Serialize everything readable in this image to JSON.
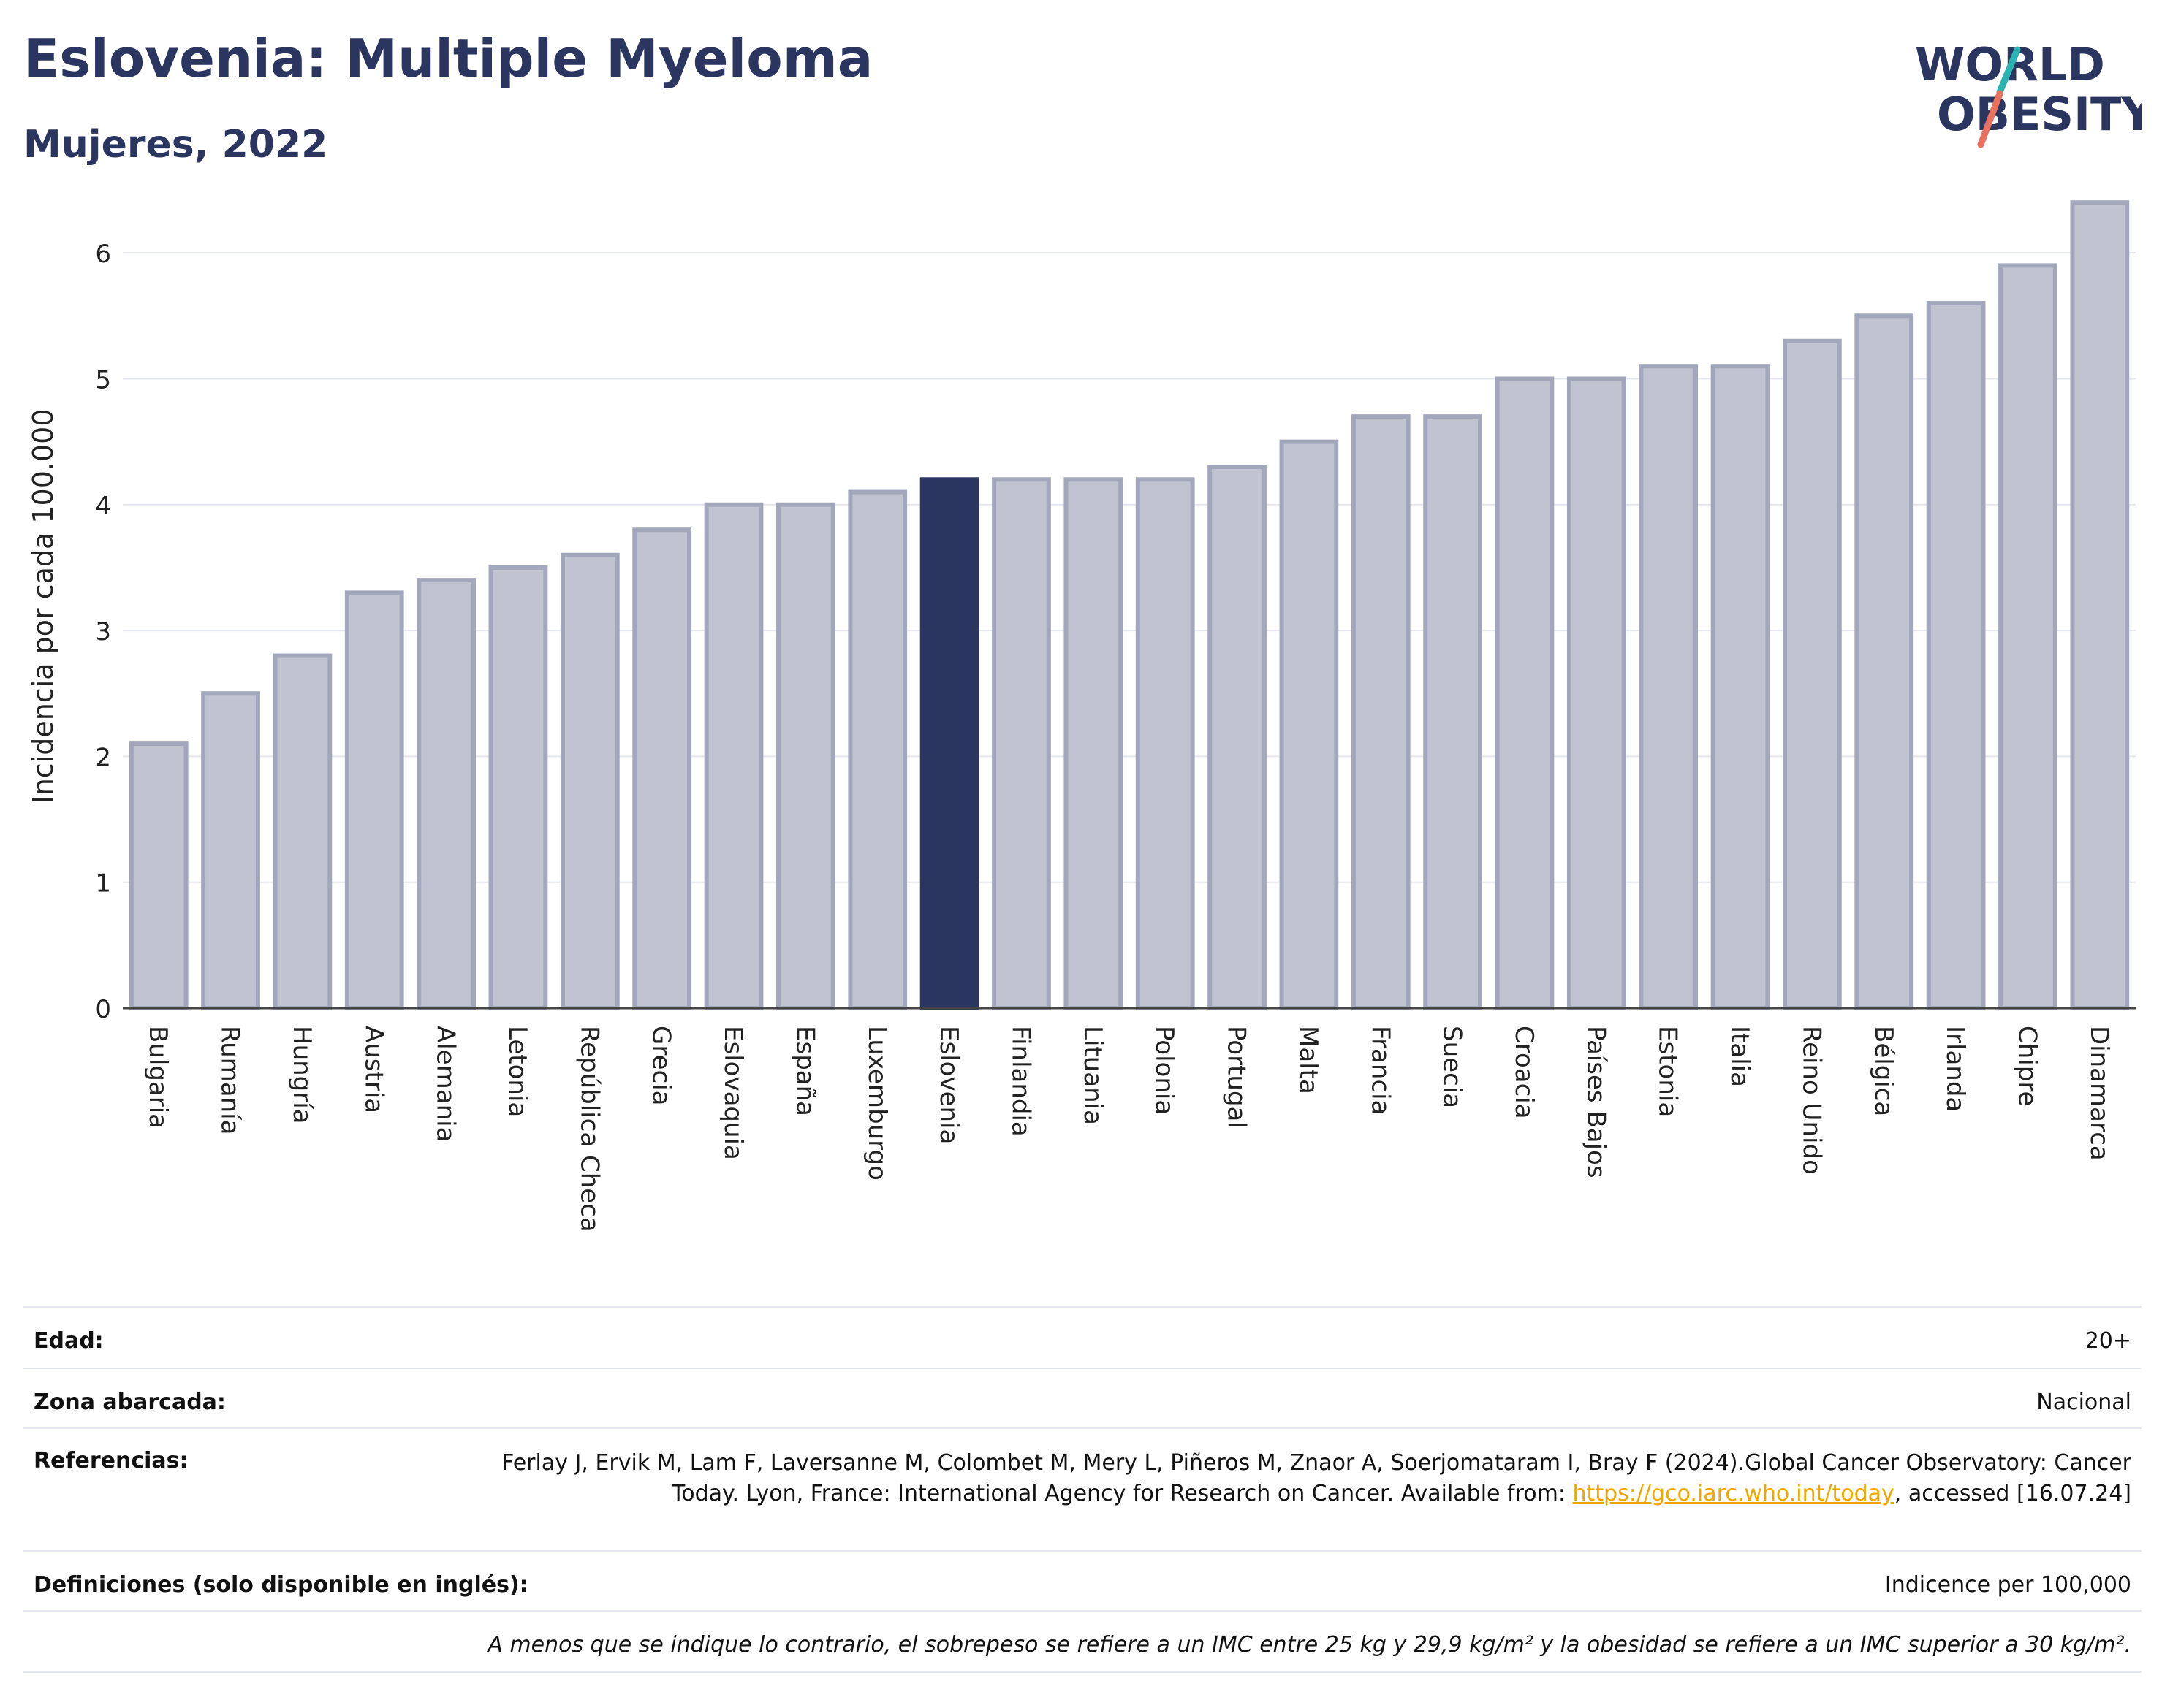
{
  "header": {
    "title": "Eslovenia: Multiple Myeloma",
    "subtitle": "Mujeres, 2022"
  },
  "logo": {
    "line1": "WORLD",
    "line2": "OBESITY",
    "colors": {
      "text": "#2a3560",
      "slash_teal": "#2bb3b1",
      "slash_coral": "#e8715f"
    }
  },
  "chart_data": {
    "type": "bar",
    "ylabel": "Incidencia por cada 100.000",
    "ylim": [
      0,
      6.5
    ],
    "yticks": [
      0,
      1,
      2,
      3,
      4,
      5,
      6
    ],
    "grid": true,
    "highlight": "Eslovenia",
    "colors": {
      "bar": "#c0c3d0",
      "bar_edge": "#a3a7bc",
      "highlight": "#2a3560",
      "grid": "#e5e7ee"
    },
    "categories": [
      "Bulgaria",
      "Rumanía",
      "Hungría",
      "Austria",
      "Alemania",
      "Letonia",
      "República Checa",
      "Grecia",
      "Eslovaquia",
      "España",
      "Luxemburgo",
      "Eslovenia",
      "Finlandia",
      "Lituania",
      "Polonia",
      "Portugal",
      "Malta",
      "Francia",
      "Suecia",
      "Croacia",
      "Países Bajos",
      "Estonia",
      "Italia",
      "Reino Unido",
      "Bélgica",
      "Irlanda",
      "Chipre",
      "Dinamarca"
    ],
    "values": [
      2.1,
      2.5,
      2.8,
      3.3,
      3.4,
      3.5,
      3.6,
      3.8,
      4.0,
      4.0,
      4.1,
      4.2,
      4.2,
      4.2,
      4.2,
      4.3,
      4.5,
      4.7,
      4.7,
      5.0,
      5.0,
      5.1,
      5.1,
      5.3,
      5.5,
      5.6,
      5.9,
      6.4
    ]
  },
  "info": {
    "edad_label": "Edad:",
    "edad_value": "20+",
    "zona_label": "Zona abarcada:",
    "zona_value": "Nacional",
    "ref_label": "Referencias:",
    "ref_text_1": "Ferlay J, Ervik M, Lam F, Laversanne M, Colombet M, Mery L, Piñeros M, Znaor A, Soerjomataram I, Bray F (2024).Global Cancer Observatory: Cancer Today. Lyon, France: International Agency for Research on Cancer. Available from: ",
    "ref_link": "https://gco.iarc.who.int/today",
    "ref_text_2": ", accessed [16.07.24]",
    "def_label": "Definiciones (solo disponible en inglés):",
    "def_value": "Indicence per 100,000",
    "footnote": "A menos que se indique lo contrario, el sobrepeso se refiere a un IMC entre 25 kg y 29,9 kg/m² y la obesidad se refiere a un IMC superior a 30 kg/m²."
  }
}
